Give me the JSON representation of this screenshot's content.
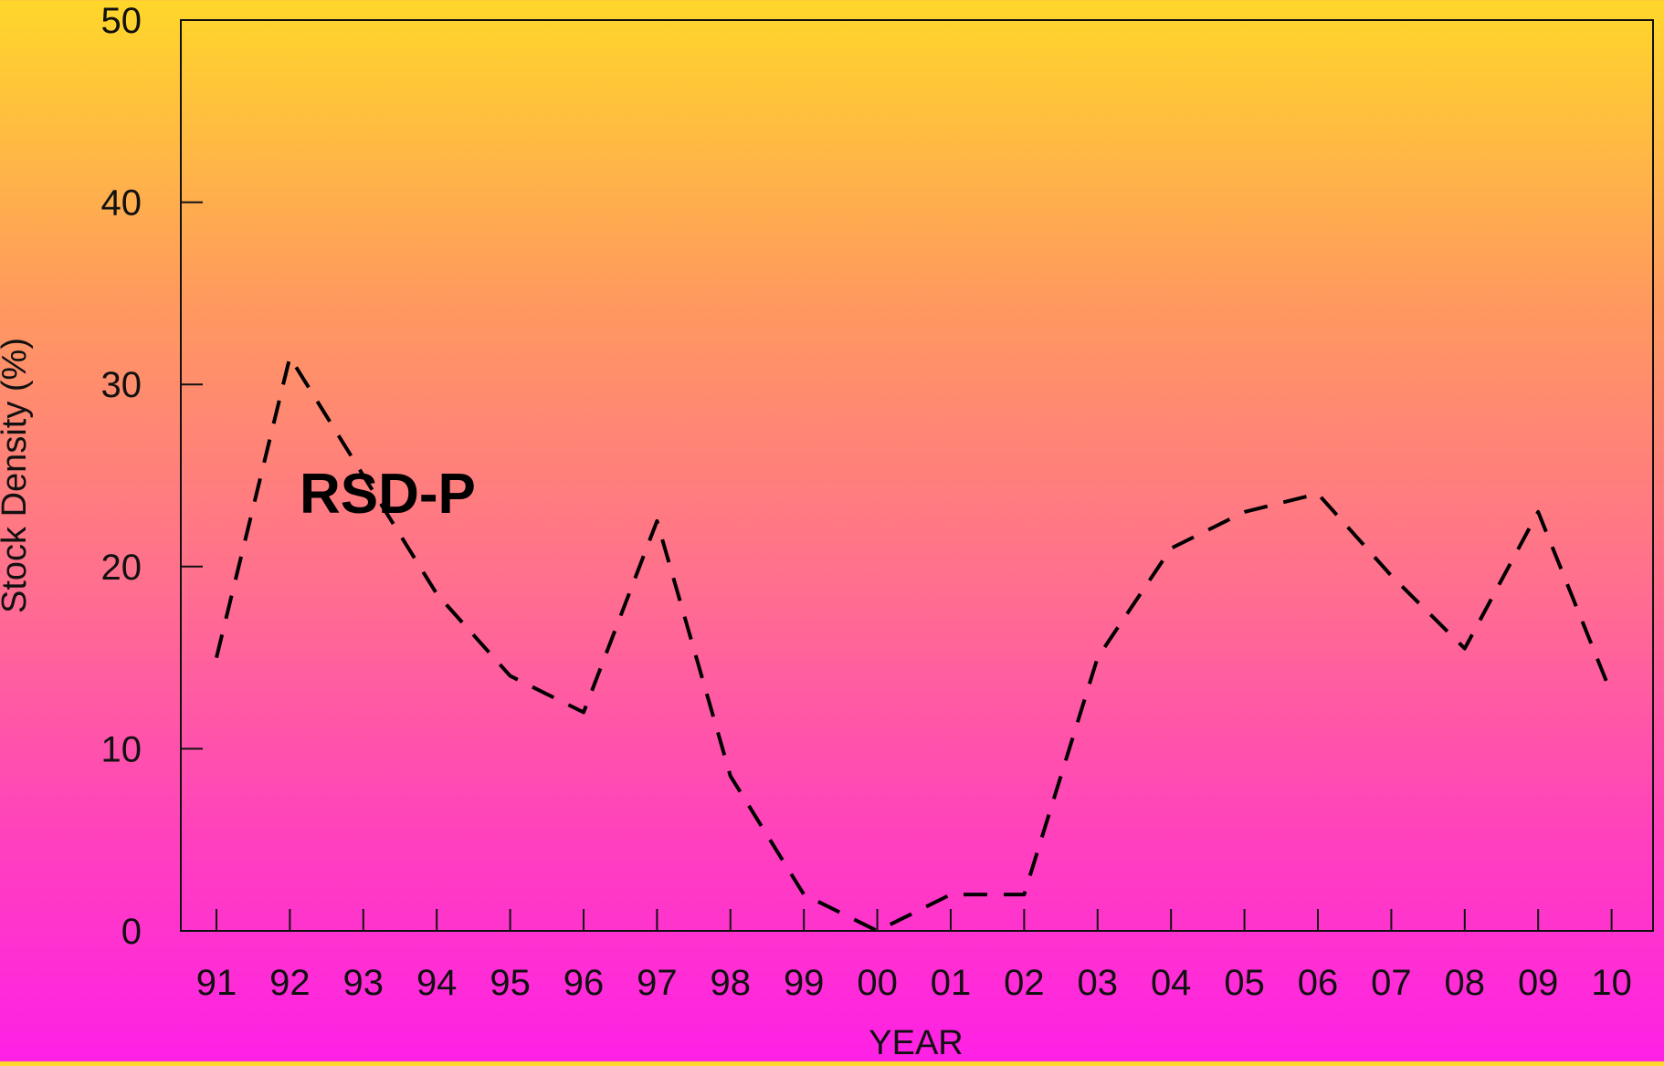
{
  "chart_data": {
    "type": "line",
    "title": "",
    "xlabel": "YEAR",
    "ylabel": "Stock Density (%)",
    "ylim": [
      0,
      50
    ],
    "yticks": [
      "0",
      "10",
      "20",
      "30",
      "40",
      "50"
    ],
    "categories": [
      "91",
      "92",
      "93",
      "94",
      "95",
      "96",
      "97",
      "98",
      "99",
      "00",
      "01",
      "02",
      "03",
      "04",
      "05",
      "06",
      "07",
      "08",
      "09",
      "10"
    ],
    "series": [
      {
        "name": "RSD-P",
        "line_style": "dashed",
        "color": "#000000",
        "values": [
          15,
          31.5,
          25,
          18.5,
          14,
          12,
          22.5,
          8.5,
          2,
          0,
          2,
          2,
          15,
          21,
          23,
          24,
          19.5,
          15.5,
          23,
          13
        ]
      }
    ],
    "annotations": [
      {
        "text": "RSD-P"
      }
    ],
    "grid": false,
    "legend": "none"
  }
}
